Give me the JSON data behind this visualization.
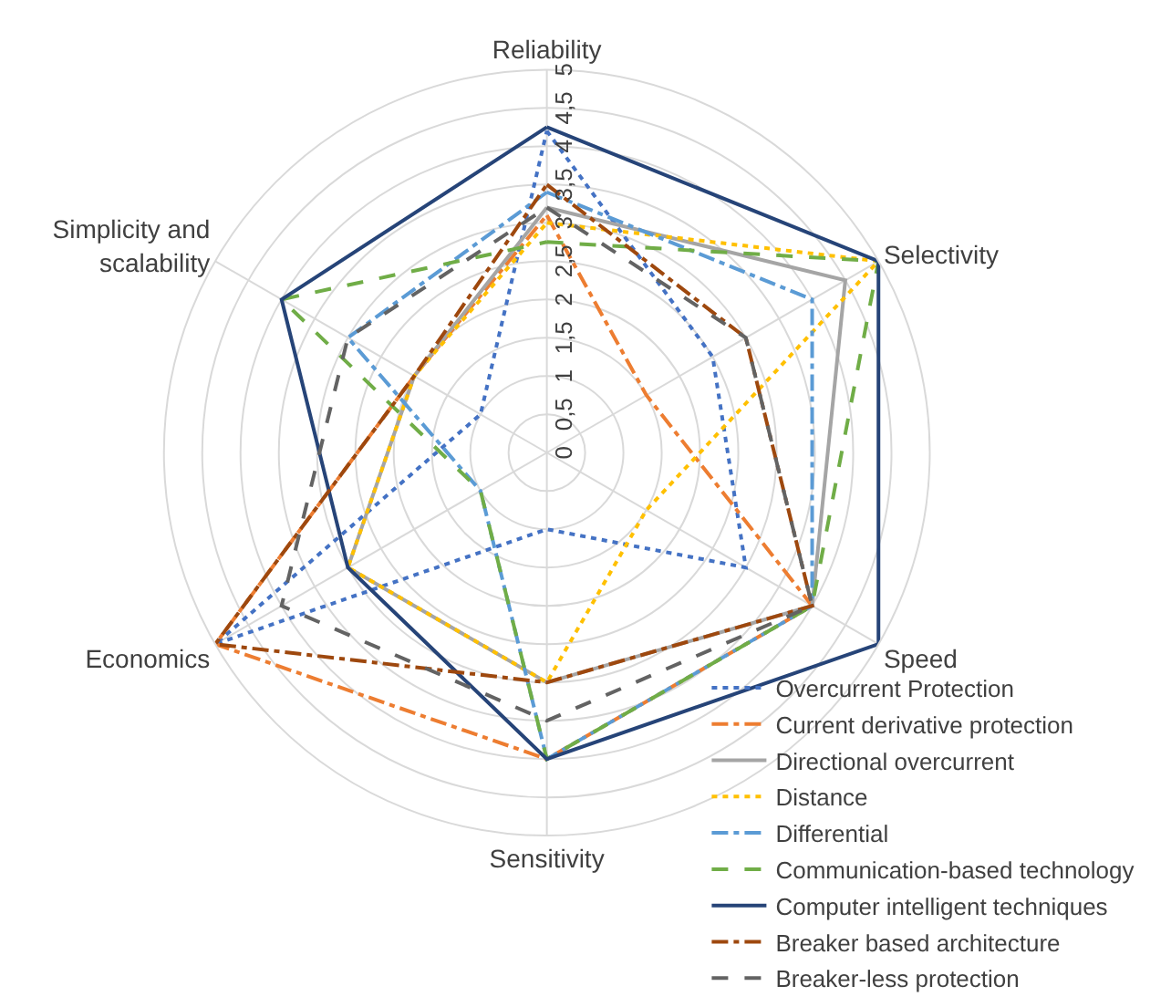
{
  "chart_data": {
    "type": "radar",
    "categories": [
      "Reliability",
      "Selectivity",
      "Speed",
      "Sensitivity",
      "Economics",
      "Simplicity and scalability"
    ],
    "ylim": [
      0,
      5
    ],
    "yticks": [
      0,
      {
        "value": 0.5,
        "label": "0,5"
      },
      1,
      {
        "value": 1.5,
        "label": "1,5"
      },
      2,
      {
        "value": 2.5,
        "label": "2,5"
      },
      3,
      {
        "value": 3.5,
        "label": "3,5"
      },
      4,
      {
        "value": 4.5,
        "label": "4,5"
      },
      5
    ],
    "grid": true,
    "legend": "bottom right",
    "marker": "none",
    "series": [
      {
        "name": "Overcurrent Protection",
        "color": "#4472c4",
        "line_style": "dotted",
        "values": [
          4.2,
          2.5,
          3,
          1,
          5,
          1
        ]
      },
      {
        "name": "Current derivative protection",
        "color": "#ed7d31",
        "line_style": "dashdot",
        "values": [
          3.1,
          1.5,
          4,
          4,
          5,
          2
        ]
      },
      {
        "name": "Directional overcurrent",
        "color": "#a5a5a5",
        "line_style": "solid",
        "values": [
          3.2,
          4.5,
          4,
          3,
          3,
          2
        ]
      },
      {
        "name": "Distance",
        "color": "#ffc000",
        "line_style": "dotted",
        "values": [
          3,
          5,
          1.5,
          3,
          3,
          2
        ]
      },
      {
        "name": "Differential",
        "color": "#5b9bd5",
        "line_style": "dashdot",
        "values": [
          3.4,
          4,
          4,
          4,
          1,
          3
        ]
      },
      {
        "name": "Communication-based technology",
        "color": "#70ad47",
        "line_style": "dashed",
        "values": [
          2.75,
          5,
          4,
          4,
          1,
          4
        ]
      },
      {
        "name": "Computer intelligent techniques",
        "color": "#264478",
        "line_style": "solid",
        "values": [
          4.25,
          5,
          5,
          4,
          3,
          4
        ]
      },
      {
        "name": "Breaker based architecture",
        "color": "#9e480e",
        "line_style": "dashdot",
        "values": [
          3.5,
          3,
          4,
          3,
          5,
          2
        ]
      },
      {
        "name": "Breaker-less protection",
        "color": "#636363",
        "line_style": "dashed",
        "values": [
          3.2,
          3,
          4,
          3.5,
          4,
          3
        ]
      }
    ]
  }
}
